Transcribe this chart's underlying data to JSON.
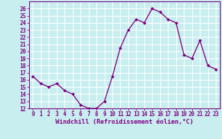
{
  "x": [
    0,
    1,
    2,
    3,
    4,
    5,
    6,
    7,
    8,
    9,
    10,
    11,
    12,
    13,
    14,
    15,
    16,
    17,
    18,
    19,
    20,
    21,
    22,
    23
  ],
  "y": [
    16.5,
    15.5,
    15.0,
    15.5,
    14.5,
    14.0,
    12.5,
    12.0,
    12.0,
    13.0,
    16.5,
    20.5,
    23.0,
    24.5,
    24.0,
    26.0,
    25.5,
    24.5,
    24.0,
    19.5,
    19.0,
    21.5,
    18.0,
    17.5
  ],
  "line_color": "#800080",
  "marker": "D",
  "marker_size": 2.0,
  "bg_color": "#c8eef0",
  "grid_color": "#ffffff",
  "xlabel": "Windchill (Refroidissement éolien,°C)",
  "xlim": [
    -0.5,
    23.5
  ],
  "ylim": [
    12,
    27
  ],
  "yticks": [
    12,
    13,
    14,
    15,
    16,
    17,
    18,
    19,
    20,
    21,
    22,
    23,
    24,
    25,
    26
  ],
  "xticks": [
    0,
    1,
    2,
    3,
    4,
    5,
    6,
    7,
    8,
    9,
    10,
    11,
    12,
    13,
    14,
    15,
    16,
    17,
    18,
    19,
    20,
    21,
    22,
    23
  ],
  "tick_fontsize": 5.5,
  "xlabel_fontsize": 6.5,
  "line_width": 1.0,
  "spine_color": "#800080"
}
